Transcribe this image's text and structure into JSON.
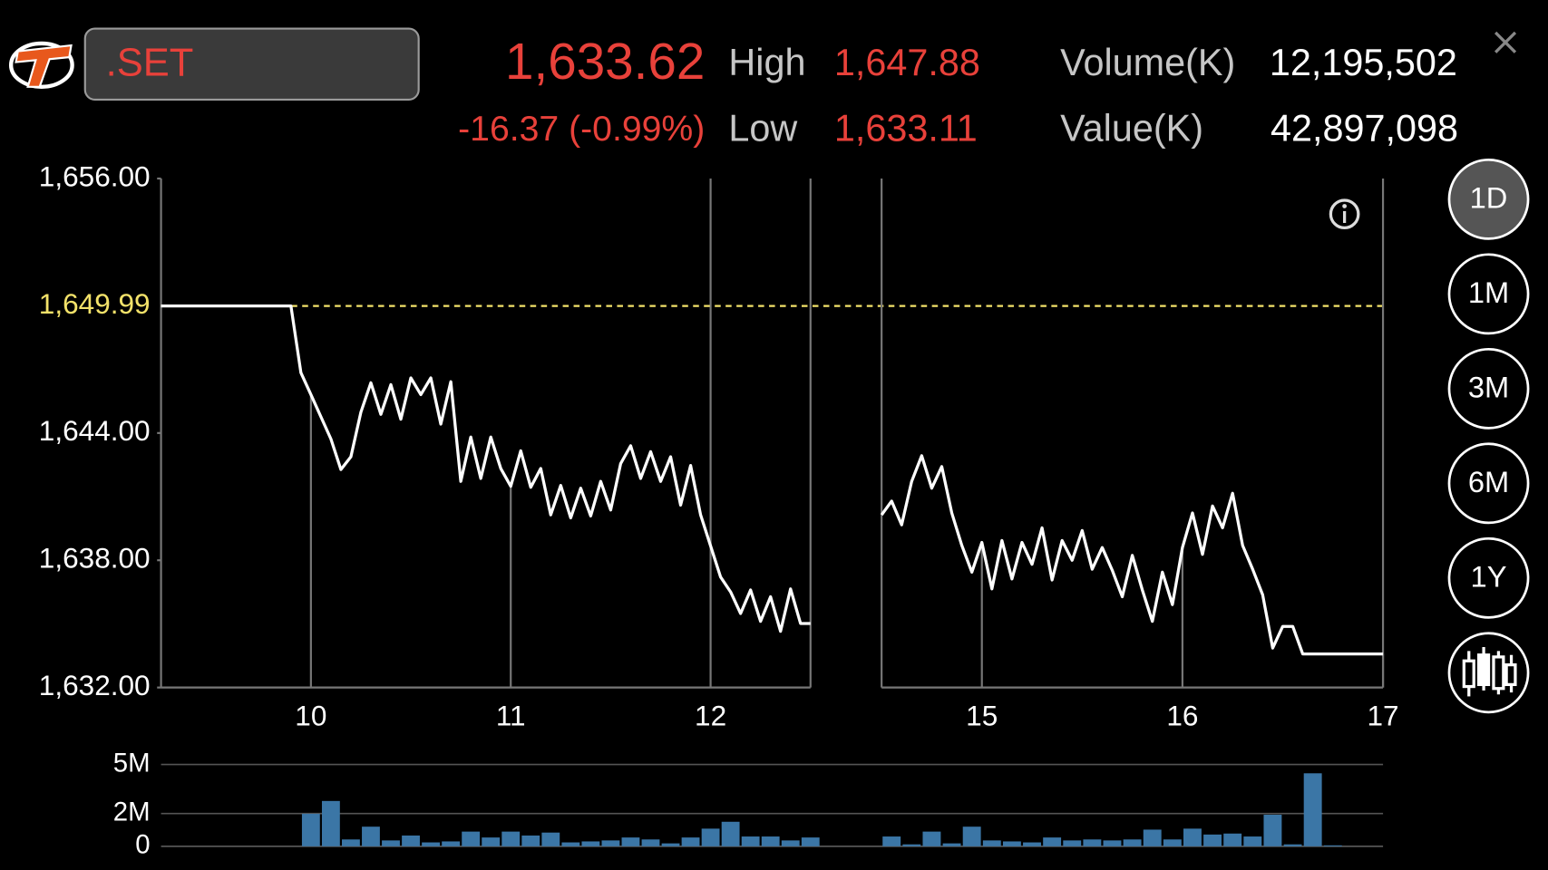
{
  "header": {
    "symbol": ".SET",
    "last": "1,633.62",
    "change": "-16.37 (-0.99%)",
    "high_label": "High",
    "high": "1,647.88",
    "low_label": "Low",
    "low": "1,633.11",
    "volume_label": "Volume(K)",
    "volume": "12,195,502",
    "value_label": "Value(K)",
    "value": "42,897,098"
  },
  "range_buttons": [
    "1D",
    "1M",
    "3M",
    "6M",
    "1Y"
  ],
  "chart_data": [
    {
      "type": "line",
      "color": "#ffffff",
      "xlim": [
        9.25,
        12.5
      ],
      "ylim": [
        1632,
        1656
      ],
      "xticks": [
        10,
        11,
        12
      ],
      "yticks": [
        {
          "value": 1632,
          "label": "1,632.00"
        },
        {
          "value": 1638,
          "label": "1,638.00"
        },
        {
          "value": 1644,
          "label": "1,644.00"
        },
        {
          "value": 1656,
          "label": "1,656.00"
        }
      ],
      "reference_line": {
        "value": 1649.99,
        "label": "1,649.99",
        "color": "#f3e26a"
      },
      "x": [
        9.25,
        9.9,
        9.95,
        10.0,
        10.1,
        10.15,
        10.2,
        10.25,
        10.3,
        10.35,
        10.4,
        10.45,
        10.5,
        10.55,
        10.6,
        10.65,
        10.7,
        10.75,
        10.8,
        10.85,
        10.9,
        10.95,
        11.0,
        11.05,
        11.1,
        11.15,
        11.2,
        11.25,
        11.3,
        11.35,
        11.4,
        11.45,
        11.5,
        11.55,
        11.6,
        11.65,
        11.7,
        11.75,
        11.8,
        11.85,
        11.9,
        11.95,
        12.05,
        12.1,
        12.15,
        12.2,
        12.25,
        12.3,
        12.35,
        12.4,
        12.45,
        12.5
      ],
      "values": [
        1649.99,
        1649.99,
        1646.84,
        1645.81,
        1643.72,
        1642.28,
        1642.88,
        1644.98,
        1646.37,
        1644.88,
        1646.28,
        1644.65,
        1646.6,
        1645.81,
        1646.6,
        1644.42,
        1646.42,
        1641.72,
        1643.81,
        1641.86,
        1643.81,
        1642.33,
        1641.49,
        1643.16,
        1641.44,
        1642.33,
        1640.14,
        1641.53,
        1640.0,
        1641.4,
        1640.09,
        1641.72,
        1640.37,
        1642.56,
        1643.4,
        1641.86,
        1643.12,
        1641.72,
        1642.88,
        1640.6,
        1642.47,
        1640.14,
        1637.21,
        1636.51,
        1635.49,
        1636.6,
        1635.12,
        1636.28,
        1634.65,
        1636.65,
        1635.02,
        1635.02
      ]
    },
    {
      "type": "line",
      "color": "#ffffff",
      "xlim": [
        14.5,
        17
      ],
      "ylim": [
        1632,
        1656
      ],
      "xticks": [
        15,
        16,
        17
      ],
      "x": [
        14.5,
        14.55,
        14.6,
        14.65,
        14.7,
        14.75,
        14.8,
        14.85,
        14.9,
        14.95,
        15.0,
        15.05,
        15.1,
        15.15,
        15.2,
        15.25,
        15.3,
        15.35,
        15.4,
        15.45,
        15.5,
        15.55,
        15.6,
        15.65,
        15.7,
        15.75,
        15.8,
        15.85,
        15.9,
        15.95,
        16.0,
        16.05,
        16.1,
        16.15,
        16.2,
        16.25,
        16.3,
        16.35,
        16.4,
        16.45,
        16.5,
        16.55,
        16.6,
        17.0
      ],
      "values": [
        1640.14,
        1640.79,
        1639.67,
        1641.72,
        1642.93,
        1641.4,
        1642.42,
        1640.23,
        1638.7,
        1637.44,
        1638.84,
        1636.65,
        1638.93,
        1637.12,
        1638.84,
        1637.81,
        1639.53,
        1637.07,
        1638.93,
        1638.0,
        1639.4,
        1637.58,
        1638.6,
        1637.53,
        1636.28,
        1638.23,
        1636.6,
        1635.12,
        1637.44,
        1635.91,
        1638.6,
        1640.23,
        1638.28,
        1640.56,
        1639.53,
        1641.16,
        1638.7,
        1637.58,
        1636.37,
        1633.86,
        1634.88,
        1634.88,
        1633.58,
        1633.58
      ]
    },
    {
      "type": "bar",
      "color": "#3b76a6",
      "xlim": [
        9.25,
        12.5
      ],
      "ylim": [
        0,
        5000000
      ],
      "yticks": [
        0,
        {
          "value": 2000000,
          "label": "2M"
        },
        {
          "value": 5000000,
          "label": "5M"
        }
      ],
      "x": [
        10.0,
        10.1,
        10.2,
        10.3,
        10.4,
        10.5,
        10.6,
        10.7,
        10.8,
        10.9,
        11.0,
        11.1,
        11.2,
        11.3,
        11.4,
        11.5,
        11.6,
        11.7,
        11.8,
        11.9,
        12.0,
        12.1,
        12.2,
        12.3,
        12.4,
        12.5
      ],
      "values": [
        1990000,
        2770000,
        420000,
        1200000,
        360000,
        660000,
        240000,
        300000,
        900000,
        540000,
        900000,
        660000,
        840000,
        240000,
        300000,
        360000,
        540000,
        420000,
        180000,
        540000,
        1080000,
        1500000,
        600000,
        600000,
        360000,
        540000
      ]
    },
    {
      "type": "bar",
      "color": "#3b76a6",
      "xlim": [
        14.5,
        17
      ],
      "ylim": [
        0,
        5000000
      ],
      "x": [
        14.55,
        14.65,
        14.75,
        14.85,
        14.95,
        15.05,
        15.15,
        15.25,
        15.35,
        15.45,
        15.55,
        15.65,
        15.75,
        15.85,
        15.95,
        16.05,
        16.15,
        16.25,
        16.35,
        16.45,
        16.55,
        16.65,
        16.75
      ],
      "values": [
        600000,
        120000,
        900000,
        180000,
        1200000,
        360000,
        300000,
        240000,
        540000,
        360000,
        420000,
        360000,
        420000,
        1020000,
        420000,
        1080000,
        720000,
        780000,
        600000,
        1930000,
        120000,
        4460000,
        60000
      ]
    }
  ]
}
